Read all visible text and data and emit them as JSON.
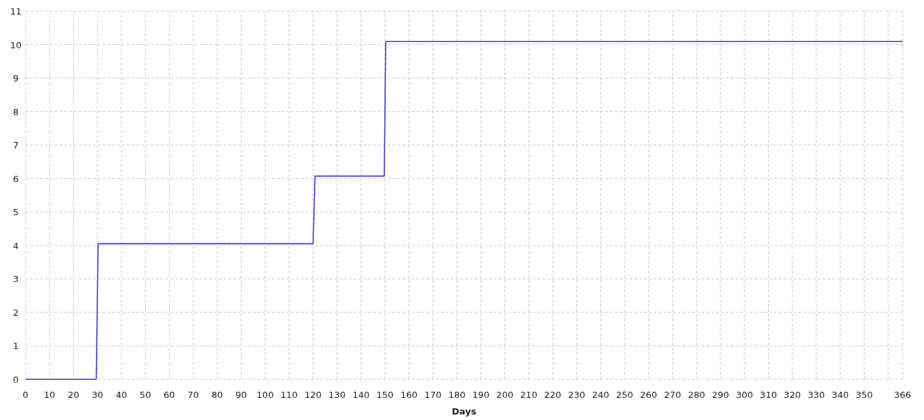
{
  "chart_data": {
    "type": "line",
    "xlabel": "Days",
    "xlim": [
      0,
      366
    ],
    "xticks": [
      0,
      10,
      20,
      30,
      40,
      50,
      60,
      70,
      80,
      90,
      100,
      110,
      120,
      130,
      140,
      150,
      160,
      170,
      180,
      190,
      200,
      210,
      220,
      230,
      240,
      250,
      260,
      270,
      280,
      290,
      300,
      310,
      320,
      330,
      340,
      350,
      {
        "value": 360,
        "label": null
      },
      366
    ],
    "ylim": [
      0,
      11
    ],
    "yticks": [
      0,
      1,
      2,
      3,
      4,
      5,
      6,
      7,
      8,
      9,
      10,
      11
    ],
    "grid": true,
    "line_style": "solid",
    "series": [
      {
        "color": "#3a3ad0",
        "x": [
          0,
          29.5,
          30.3,
          120,
          120.8,
          149.7,
          150.3,
          366
        ],
        "values": [
          0,
          0,
          4.05,
          4.05,
          6.07,
          6.07,
          10.09,
          10.09
        ]
      }
    ]
  }
}
